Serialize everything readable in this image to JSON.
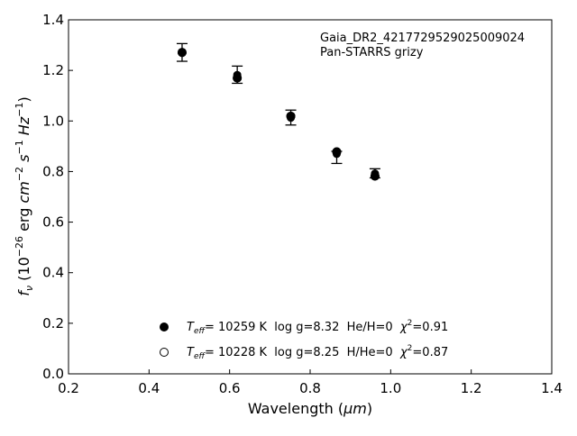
{
  "chart_data": {
    "type": "scatter",
    "xlabel_main": "Wavelength (",
    "xlabel_unit": "μm",
    "xlabel_end": ")",
    "ylabel": {
      "f": "f",
      "nu": "ν",
      "p1": " (10",
      "e1": "−26",
      "p2": " erg ",
      "cm": "cm",
      "e2": "−2",
      "sp": " ",
      "s": "s",
      "e3": "−1",
      "sp2": " ",
      "hz": "Hz",
      "e4": "−1",
      "p3": ")"
    },
    "xlim": [
      0.2,
      1.4
    ],
    "ylim": [
      0.0,
      1.4
    ],
    "x_ticks": [
      "0.2",
      "0.4",
      "0.6",
      "0.8",
      "1.0",
      "1.2",
      "1.4"
    ],
    "y_ticks": [
      "0.0",
      "0.2",
      "0.4",
      "0.6",
      "0.8",
      "1.0",
      "1.2",
      "1.4"
    ],
    "annotation": [
      "Gaia_DR2_4217729529025009024",
      "Pan-STARRS grizy"
    ],
    "observed": {
      "x": [
        0.482,
        0.619,
        0.752,
        0.866,
        0.961
      ],
      "y": [
        1.273,
        1.182,
        1.013,
        0.87,
        0.792
      ],
      "err_lo": [
        1.236,
        1.149,
        0.984,
        0.832,
        0.775
      ],
      "err_hi": [
        1.306,
        1.217,
        1.043,
        0.88,
        0.811
      ]
    },
    "series": [
      {
        "marker": "filled",
        "x": [
          0.482,
          0.619,
          0.752,
          0.866,
          0.961
        ],
        "values": [
          1.271,
          1.17,
          1.019,
          0.878,
          0.782
        ]
      },
      {
        "marker": "open",
        "x": [
          0.482,
          0.619,
          0.752,
          0.866,
          0.961
        ],
        "values": [
          1.271,
          1.17,
          1.019,
          0.878,
          0.782
        ]
      }
    ],
    "legend": [
      {
        "marker": "filled",
        "T": "T",
        "eff": "eff",
        "rest": "= 10259 K  log g=8.32  He/H=0  ",
        "chi": "χ",
        "two": "2",
        "chival": "=0.91"
      },
      {
        "marker": "open",
        "T": "T",
        "eff": "eff",
        "rest": "= 10228 K  log g=8.25  H/He=0  ",
        "chi": "χ",
        "two": "2",
        "chival": "=0.87"
      }
    ],
    "legend_position": "lower-center"
  }
}
